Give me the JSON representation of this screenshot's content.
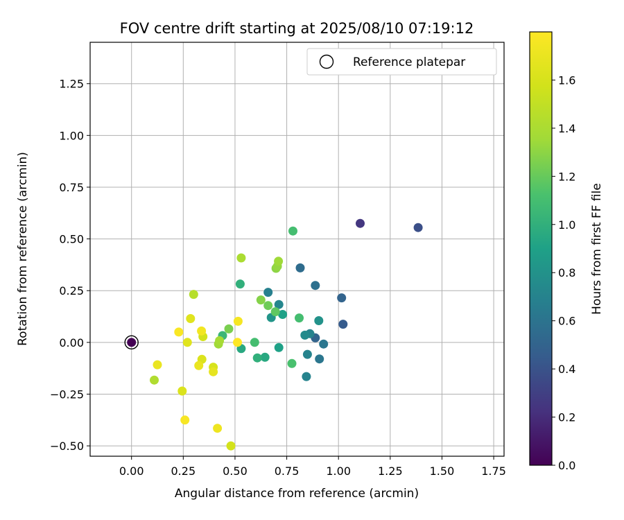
{
  "chart_data": {
    "type": "scatter",
    "title": "FOV centre drift starting at 2025/08/10 07:19:12",
    "xlabel": "Angular distance from reference (arcmin)",
    "ylabel": "Rotation from reference (arcmin)",
    "xlim": [
      -0.2,
      1.8
    ],
    "ylim": [
      -0.55,
      1.45
    ],
    "xticks": [
      "0.00",
      "0.25",
      "0.50",
      "0.75",
      "1.00",
      "1.25",
      "1.50",
      "1.75"
    ],
    "yticks": [
      "−0.50",
      "−0.25",
      "0.00",
      "0.25",
      "0.50",
      "0.75",
      "1.00",
      "1.25"
    ],
    "xtick_values": [
      0,
      0.25,
      0.5,
      0.75,
      1.0,
      1.25,
      1.5,
      1.75
    ],
    "ytick_values": [
      -0.5,
      -0.25,
      0,
      0.25,
      0.5,
      0.75,
      1.0,
      1.25
    ],
    "grid": true,
    "legend": {
      "placement": "top-right",
      "label": "Reference platepar"
    },
    "reference_point": {
      "x": 0.0,
      "y": 0.0,
      "hours": 0.0
    },
    "colorbar": {
      "label": "Hours from first FF file",
      "min": 0.0,
      "max": 1.8,
      "ticks": [
        "0.0",
        "0.2",
        "0.4",
        "0.6",
        "0.8",
        "1.0",
        "1.2",
        "1.4",
        "1.6"
      ],
      "tick_values": [
        0.0,
        0.2,
        0.4,
        0.6,
        0.8,
        1.0,
        1.2,
        1.4,
        1.6
      ],
      "colormap": "viridis"
    },
    "points": [
      {
        "x": 1.105,
        "y": 0.575,
        "hours": 0.25
      },
      {
        "x": 1.385,
        "y": 0.555,
        "hours": 0.38
      },
      {
        "x": 1.015,
        "y": 0.215,
        "hours": 0.5
      },
      {
        "x": 1.022,
        "y": 0.088,
        "hours": 0.45
      },
      {
        "x": 0.815,
        "y": 0.36,
        "hours": 0.55
      },
      {
        "x": 0.888,
        "y": 0.275,
        "hours": 0.58
      },
      {
        "x": 0.888,
        "y": 0.022,
        "hours": 0.5
      },
      {
        "x": 0.928,
        "y": -0.008,
        "hours": 0.62
      },
      {
        "x": 0.908,
        "y": -0.08,
        "hours": 0.62
      },
      {
        "x": 0.845,
        "y": -0.165,
        "hours": 0.7
      },
      {
        "x": 0.85,
        "y": -0.058,
        "hours": 0.7
      },
      {
        "x": 0.862,
        "y": 0.042,
        "hours": 0.7
      },
      {
        "x": 0.838,
        "y": 0.035,
        "hours": 0.75
      },
      {
        "x": 0.905,
        "y": 0.105,
        "hours": 0.8
      },
      {
        "x": 0.66,
        "y": 0.242,
        "hours": 0.68
      },
      {
        "x": 0.712,
        "y": 0.183,
        "hours": 0.72
      },
      {
        "x": 0.675,
        "y": 0.12,
        "hours": 0.82
      },
      {
        "x": 0.73,
        "y": 0.135,
        "hours": 0.9
      },
      {
        "x": 0.712,
        "y": -0.025,
        "hours": 0.9
      },
      {
        "x": 0.645,
        "y": -0.072,
        "hours": 0.95
      },
      {
        "x": 0.608,
        "y": -0.075,
        "hours": 1.0
      },
      {
        "x": 0.53,
        "y": -0.03,
        "hours": 0.95
      },
      {
        "x": 0.525,
        "y": 0.282,
        "hours": 1.0
      },
      {
        "x": 0.44,
        "y": 0.033,
        "hours": 1.05
      },
      {
        "x": 0.81,
        "y": 0.118,
        "hours": 1.1
      },
      {
        "x": 0.595,
        "y": 0.0,
        "hours": 1.1
      },
      {
        "x": 0.78,
        "y": 0.538,
        "hours": 1.1
      },
      {
        "x": 0.775,
        "y": -0.102,
        "hours": 1.12
      },
      {
        "x": 0.695,
        "y": 0.148,
        "hours": 1.18
      },
      {
        "x": 0.66,
        "y": 0.178,
        "hours": 1.22
      },
      {
        "x": 0.47,
        "y": 0.065,
        "hours": 1.25
      },
      {
        "x": 0.625,
        "y": 0.205,
        "hours": 1.28
      },
      {
        "x": 0.698,
        "y": 0.358,
        "hours": 1.3
      },
      {
        "x": 0.705,
        "y": 0.368,
        "hours": 1.32
      },
      {
        "x": 0.71,
        "y": 0.392,
        "hours": 1.35
      },
      {
        "x": 0.42,
        "y": -0.008,
        "hours": 1.35
      },
      {
        "x": 0.425,
        "y": 0.008,
        "hours": 1.38
      },
      {
        "x": 0.53,
        "y": 0.408,
        "hours": 1.4
      },
      {
        "x": 0.3,
        "y": 0.232,
        "hours": 1.45
      },
      {
        "x": 0.11,
        "y": -0.182,
        "hours": 1.42
      },
      {
        "x": 0.345,
        "y": 0.028,
        "hours": 1.58
      },
      {
        "x": 0.395,
        "y": -0.12,
        "hours": 1.6
      },
      {
        "x": 0.34,
        "y": -0.082,
        "hours": 1.62
      },
      {
        "x": 0.245,
        "y": -0.235,
        "hours": 1.62
      },
      {
        "x": 0.285,
        "y": 0.115,
        "hours": 1.65
      },
      {
        "x": 0.27,
        "y": 0.0,
        "hours": 1.65
      },
      {
        "x": 0.395,
        "y": -0.142,
        "hours": 1.68
      },
      {
        "x": 0.125,
        "y": -0.108,
        "hours": 1.7
      },
      {
        "x": 0.325,
        "y": -0.112,
        "hours": 1.7
      },
      {
        "x": 0.415,
        "y": -0.415,
        "hours": 1.72
      },
      {
        "x": 0.48,
        "y": -0.5,
        "hours": 1.58
      },
      {
        "x": 0.338,
        "y": 0.055,
        "hours": 1.74
      },
      {
        "x": 0.258,
        "y": -0.375,
        "hours": 1.77
      },
      {
        "x": 0.228,
        "y": 0.05,
        "hours": 1.78
      },
      {
        "x": 0.515,
        "y": 0.102,
        "hours": 1.76
      },
      {
        "x": 0.512,
        "y": 0.0,
        "hours": 1.8
      }
    ]
  }
}
